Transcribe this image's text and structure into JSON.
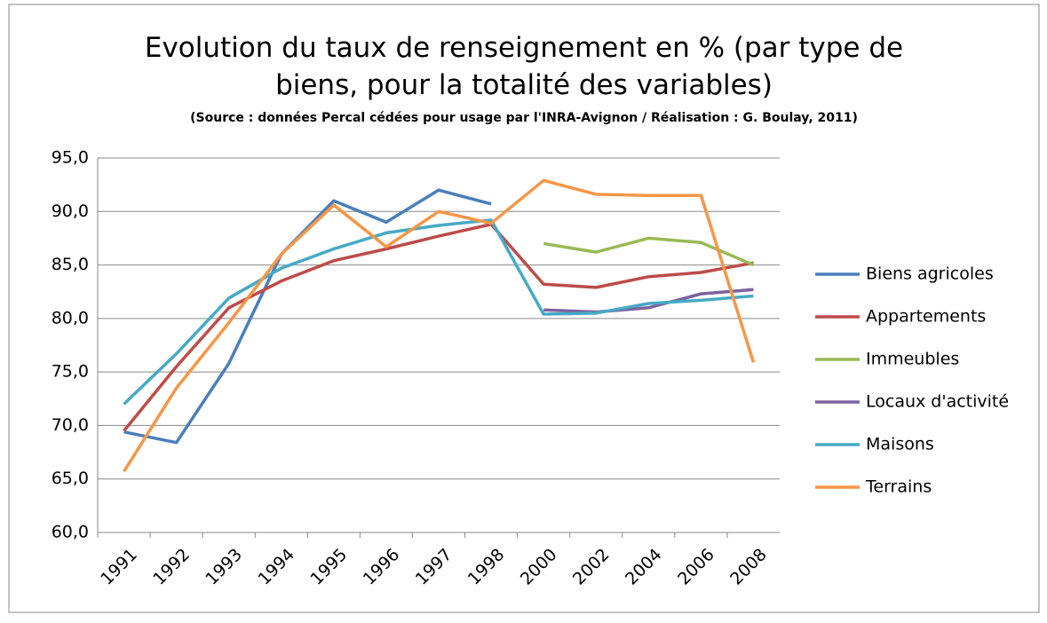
{
  "chart_data": {
    "type": "line",
    "title": "Evolution du taux de renseignement en % (par type de biens, pour la totalité des variables)",
    "subtitle": "(Source : données Percal cédées pour usage par l'INRA-Avignon / Réalisation : G. Boulay, 2011)",
    "categories": [
      "1991",
      "1992",
      "1993",
      "1994",
      "1995",
      "1996",
      "1997",
      "1998",
      "2000",
      "2002",
      "2004",
      "2006",
      "2008"
    ],
    "series": [
      {
        "name": "Biens agricoles",
        "color": "#4a7ebb",
        "values": [
          69.4,
          68.4,
          75.8,
          86.0,
          91.0,
          89.0,
          92.0,
          90.7,
          null,
          null,
          null,
          null,
          null
        ]
      },
      {
        "name": "Appartements",
        "color": "#be4b48",
        "values": [
          69.5,
          75.5,
          81.0,
          83.5,
          85.4,
          86.5,
          87.7,
          88.8,
          83.2,
          82.9,
          83.9,
          84.3,
          85.2
        ]
      },
      {
        "name": "Immeubles",
        "color": "#98b954",
        "values": [
          null,
          null,
          null,
          null,
          null,
          null,
          null,
          null,
          87.0,
          86.2,
          87.5,
          87.1,
          85.0
        ]
      },
      {
        "name": "Locaux d'activité",
        "color": "#7d60a0",
        "values": [
          null,
          null,
          null,
          null,
          null,
          null,
          null,
          null,
          80.8,
          80.6,
          81.0,
          82.3,
          82.7
        ]
      },
      {
        "name": "Maisons",
        "color": "#46aac5",
        "values": [
          72.0,
          76.7,
          81.9,
          84.7,
          86.5,
          88.0,
          88.7,
          89.2,
          80.4,
          80.5,
          81.4,
          81.7,
          82.1
        ]
      },
      {
        "name": "Terrains",
        "color": "#f79646",
        "values": [
          65.7,
          73.5,
          79.6,
          86.0,
          90.6,
          86.7,
          90.0,
          88.9,
          92.9,
          91.6,
          91.5,
          91.5,
          75.9
        ]
      }
    ],
    "ylim": [
      60,
      95
    ],
    "yticks": [
      {
        "value": 60,
        "label": "60,0"
      },
      {
        "value": 65,
        "label": "65,0"
      },
      {
        "value": 70,
        "label": "70,0"
      },
      {
        "value": 75,
        "label": "75,0"
      },
      {
        "value": 80,
        "label": "80,0"
      },
      {
        "value": 85,
        "label": "85,0"
      },
      {
        "value": 90,
        "label": "90,0"
      },
      {
        "value": 95,
        "label": "95,0"
      }
    ],
    "grid": true,
    "legend": "right"
  }
}
